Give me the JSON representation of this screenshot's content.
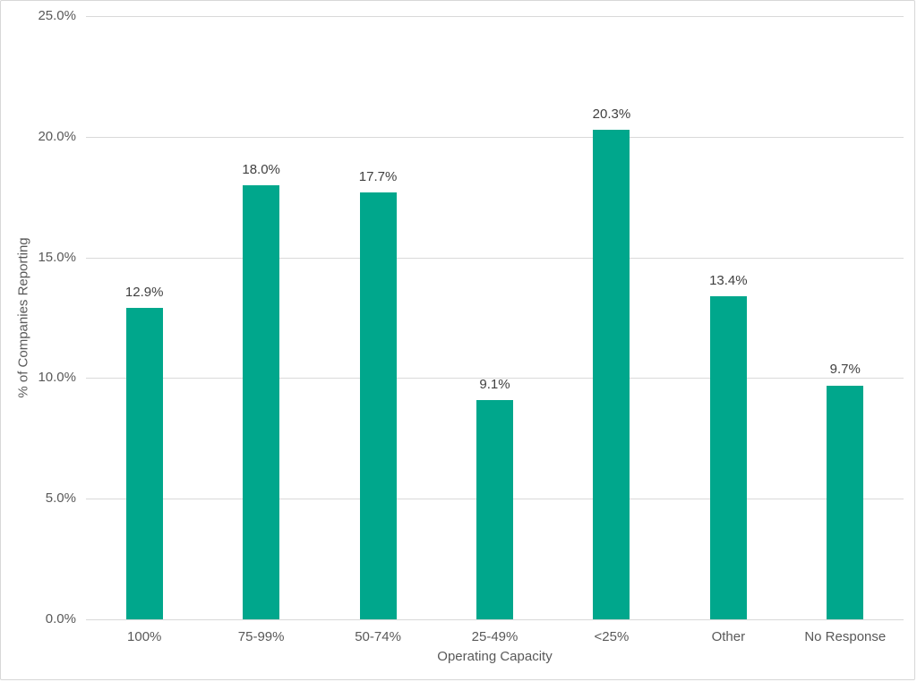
{
  "chart_data": {
    "type": "bar",
    "title": "",
    "categories": [
      "100%",
      "75-99%",
      "50-74%",
      "25-49%",
      "<25%",
      "Other",
      "No Response"
    ],
    "values": [
      12.9,
      18.0,
      17.7,
      9.1,
      20.3,
      13.4,
      9.7
    ],
    "value_labels": [
      "12.9%",
      "18.0%",
      "17.7%",
      "9.1%",
      "20.3%",
      "13.4%",
      "9.7%"
    ],
    "xlabel": "Operating Capacity",
    "ylabel": "% of Companies Reporting",
    "ylim": [
      0,
      25
    ],
    "yticks": [
      {
        "value": 0,
        "label": "0.0%"
      },
      {
        "value": 5,
        "label": "5.0%"
      },
      {
        "value": 10,
        "label": "10.0%"
      },
      {
        "value": 15,
        "label": "15.0%"
      },
      {
        "value": 20,
        "label": "20.0%"
      },
      {
        "value": 25,
        "label": "25.0%"
      }
    ],
    "grid": true,
    "legend": "none",
    "bar_color": "#00a78c",
    "gridline_color": "#d9d9d9",
    "axis_line_color": "#d9d9d9",
    "tick_label_color": "#595959",
    "data_label_color": "#404040"
  }
}
